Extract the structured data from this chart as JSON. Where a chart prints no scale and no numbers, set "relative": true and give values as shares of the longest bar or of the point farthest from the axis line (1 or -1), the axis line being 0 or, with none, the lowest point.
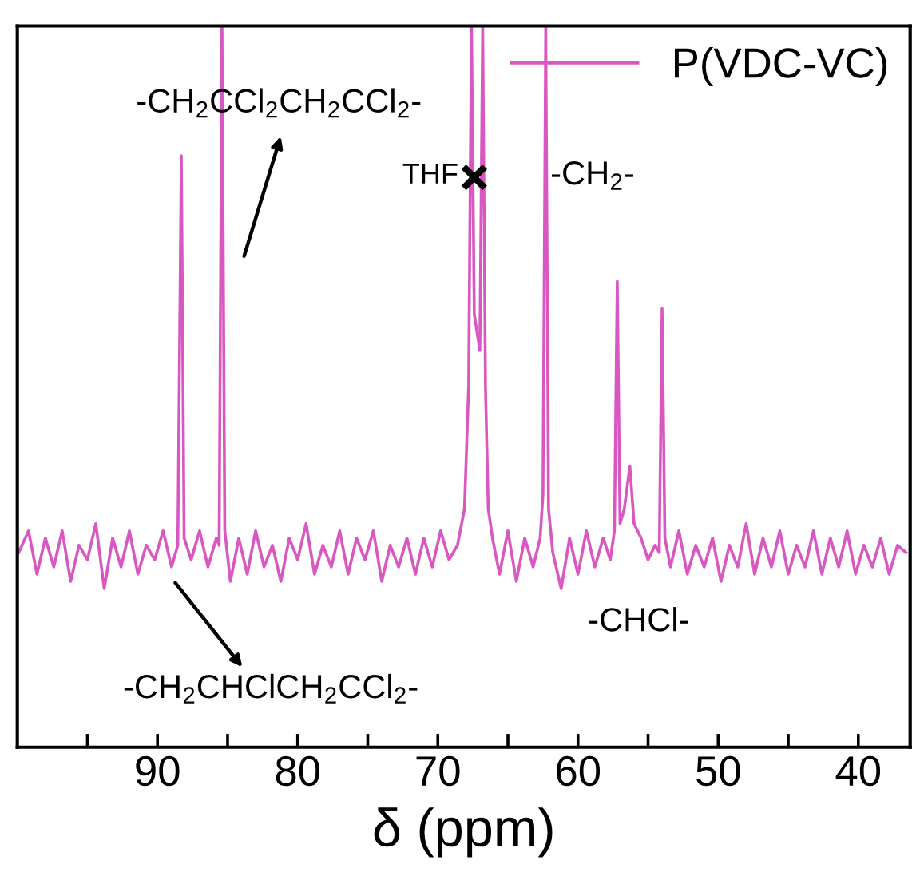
{
  "chart_data": {
    "type": "line",
    "xlabel": "δ (ppm)",
    "relative": true,
    "xlim": [
      100,
      36.3
    ],
    "xticks": [
      {
        "value": 95,
        "label": null
      },
      90,
      {
        "value": 85,
        "label": null
      },
      80,
      {
        "value": 75,
        "label": null
      },
      70,
      {
        "value": 65,
        "label": null
      },
      60,
      {
        "value": 55,
        "label": null
      },
      50,
      {
        "value": 45,
        "label": null
      },
      40
    ],
    "legend": "top right",
    "grid": false,
    "tick_labels": "x",
    "series": [
      {
        "name": "P(VDC-VC)",
        "color": "#d957c0",
        "x": [
          99.9,
          99.2,
          98.6,
          98.0,
          97.4,
          96.8,
          96.2,
          95.6,
          95.0,
          94.4,
          93.8,
          93.2,
          92.6,
          92.0,
          91.4,
          90.8,
          90.2,
          89.6,
          89.0,
          88.55,
          88.3,
          88.1,
          87.6,
          87.0,
          86.4,
          85.8,
          85.6,
          85.4,
          85.2,
          84.8,
          84.2,
          83.6,
          83.0,
          82.4,
          81.8,
          81.2,
          80.6,
          80.0,
          79.4,
          78.8,
          78.2,
          77.6,
          77.0,
          76.4,
          75.8,
          75.2,
          74.6,
          74.0,
          73.4,
          72.8,
          72.2,
          71.6,
          71.0,
          70.4,
          69.8,
          69.2,
          68.6,
          68.1,
          67.8,
          67.6,
          67.4,
          67.0,
          66.8,
          66.6,
          66.4,
          66.1,
          65.6,
          65.0,
          64.4,
          63.8,
          63.2,
          62.7,
          62.5,
          62.3,
          62.1,
          61.8,
          61.2,
          60.6,
          60.0,
          59.4,
          58.8,
          58.2,
          57.7,
          57.4,
          57.2,
          57.0,
          56.7,
          56.3,
          56.0,
          55.5,
          55.0,
          54.5,
          54.2,
          54.0,
          53.8,
          53.4,
          52.8,
          52.2,
          51.6,
          51.0,
          50.4,
          49.8,
          49.2,
          48.6,
          48.0,
          47.4,
          46.8,
          46.2,
          45.6,
          45.0,
          44.4,
          43.8,
          43.2,
          42.6,
          42.0,
          41.4,
          40.8,
          40.2,
          39.6,
          39.0,
          38.4,
          37.8,
          37.2,
          36.6
        ],
        "values": [
          0.27,
          0.3,
          0.24,
          0.29,
          0.25,
          0.3,
          0.23,
          0.28,
          0.26,
          0.31,
          0.22,
          0.29,
          0.25,
          0.3,
          0.24,
          0.28,
          0.26,
          0.3,
          0.25,
          0.28,
          0.82,
          0.29,
          0.26,
          0.3,
          0.25,
          0.29,
          0.28,
          1,
          0.3,
          0.23,
          0.29,
          0.24,
          0.3,
          0.25,
          0.28,
          0.23,
          0.29,
          0.26,
          0.31,
          0.24,
          0.28,
          0.25,
          0.3,
          0.24,
          0.29,
          0.26,
          0.3,
          0.23,
          0.28,
          0.25,
          0.29,
          0.24,
          0.29,
          0.25,
          0.3,
          0.26,
          0.28,
          0.33,
          0.5,
          1,
          0.6,
          0.55,
          1,
          0.5,
          0.33,
          0.29,
          0.24,
          0.3,
          0.23,
          0.29,
          0.25,
          0.29,
          0.35,
          1,
          0.33,
          0.27,
          0.22,
          0.29,
          0.24,
          0.3,
          0.25,
          0.29,
          0.26,
          0.3,
          0.646,
          0.31,
          0.33,
          0.39,
          0.31,
          0.29,
          0.26,
          0.28,
          0.27,
          0.608,
          0.29,
          0.25,
          0.3,
          0.24,
          0.28,
          0.25,
          0.29,
          0.23,
          0.28,
          0.25,
          0.31,
          0.24,
          0.29,
          0.25,
          0.3,
          0.24,
          0.28,
          0.25,
          0.3,
          0.24,
          0.29,
          0.25,
          0.3,
          0.24,
          0.28,
          0.25,
          0.29,
          0.24,
          0.28,
          0.27
        ]
      },
      {
        "type": "scatter",
        "color": "#000000",
        "marker": "cross",
        "x": [
          67.4
        ],
        "values": [
          0.79
        ]
      }
    ],
    "annotations": [
      "-CH$_{2}$CCl$_{2}$CH$_{2}$CCl$_{2}$-",
      "-CH$_{2}$CHClCH$_{2}$CCl$_{2}$-",
      "THF",
      "-CH$_{2}$-",
      "-CHCl-"
    ]
  }
}
